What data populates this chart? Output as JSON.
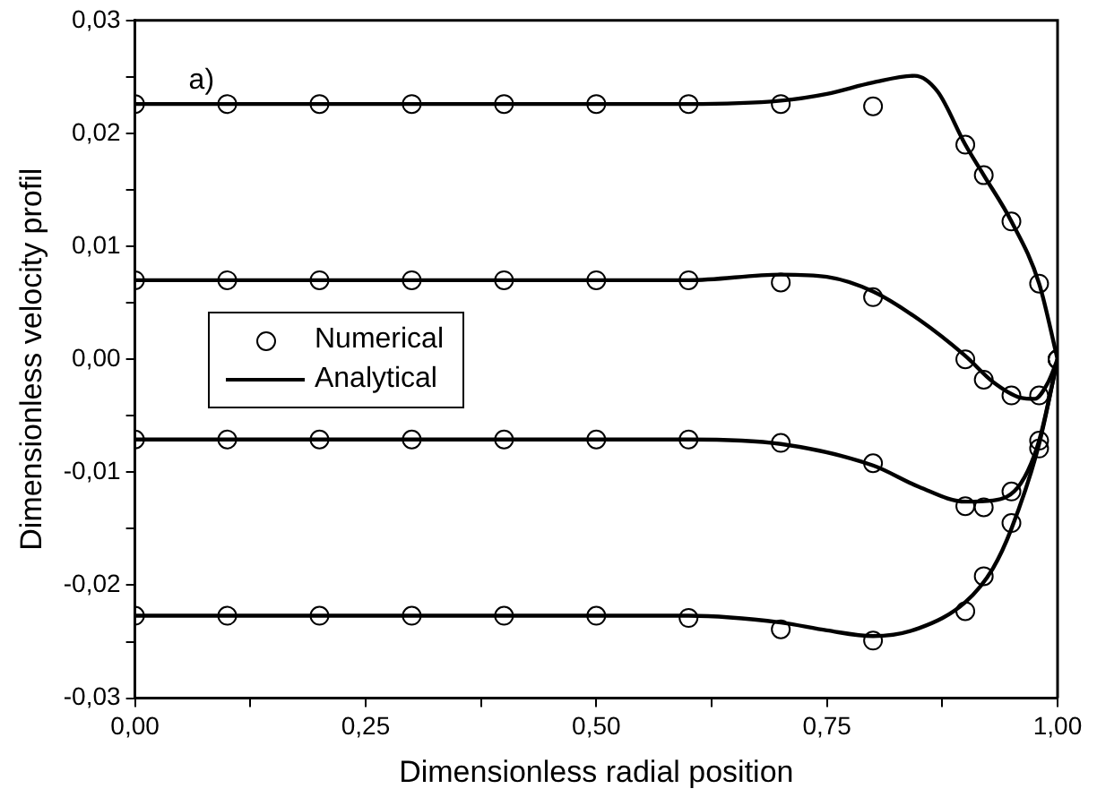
{
  "chart_data": {
    "type": "line",
    "xlabel": "Dimensionless radial position",
    "ylabel": "Dimensionless velocity profil",
    "annotations": [
      "a)"
    ],
    "xlim": [
      0,
      1
    ],
    "ylim": [
      -0.03,
      0.03
    ],
    "xticks": [
      {
        "value": 0,
        "label": "0,00"
      },
      {
        "value": 0.125,
        "label": null
      },
      {
        "value": 0.25,
        "label": "0,25"
      },
      {
        "value": 0.375,
        "label": null
      },
      {
        "value": 0.5,
        "label": "0,50"
      },
      {
        "value": 0.625,
        "label": null
      },
      {
        "value": 0.75,
        "label": "0,75"
      },
      {
        "value": 0.875,
        "label": null
      },
      {
        "value": 1,
        "label": "1,00"
      }
    ],
    "yticks": [
      {
        "value": -0.03,
        "label": "-0,03"
      },
      {
        "value": -0.025,
        "label": null
      },
      {
        "value": -0.02,
        "label": "-0,02"
      },
      {
        "value": -0.015,
        "label": null
      },
      {
        "value": -0.01,
        "label": "-0,01"
      },
      {
        "value": -0.005,
        "label": null
      },
      {
        "value": 0,
        "label": "0,00"
      },
      {
        "value": 0.005,
        "label": null
      },
      {
        "value": 0.01,
        "label": "0,01"
      },
      {
        "value": 0.015,
        "label": null
      },
      {
        "value": 0.02,
        "label": "0,02"
      },
      {
        "value": 0.025,
        "label": null
      },
      {
        "value": 0.03,
        "label": "0,03"
      }
    ],
    "grid": false,
    "legend": "left",
    "series": [
      {
        "name": "Numerical",
        "type": "scatter",
        "marker": "circle",
        "color": "#000000",
        "x": [
          0,
          0.1,
          0.2,
          0.3,
          0.4,
          0.5,
          0.6,
          0.7,
          0.8,
          0.9,
          0.92,
          0.95,
          0.98,
          1
        ],
        "values": [
          0.0226,
          0.0226,
          0.0226,
          0.0226,
          0.0226,
          0.0226,
          0.0226,
          0.0226,
          0.0224,
          0.019,
          0.0163,
          0.0122,
          0.0067,
          0
        ]
      },
      {
        "type": "scatter",
        "marker": "circle",
        "color": "#000000",
        "x": [
          0,
          0.1,
          0.2,
          0.3,
          0.4,
          0.5,
          0.6,
          0.7,
          0.8,
          0.9,
          0.92,
          0.95,
          0.98,
          1
        ],
        "values": [
          0.007,
          0.007,
          0.007,
          0.007,
          0.007,
          0.007,
          0.007,
          0.0068,
          0.0055,
          0,
          -0.0018,
          -0.0032,
          -0.0032,
          0
        ]
      },
      {
        "type": "scatter",
        "marker": "circle",
        "color": "#000000",
        "x": [
          0,
          0.1,
          0.2,
          0.3,
          0.4,
          0.5,
          0.6,
          0.7,
          0.8,
          0.9,
          0.92,
          0.95,
          0.98,
          1
        ],
        "values": [
          -0.0071,
          -0.0071,
          -0.0071,
          -0.0071,
          -0.0071,
          -0.0071,
          -0.0071,
          -0.0074,
          -0.0092,
          -0.013,
          -0.0131,
          -0.0117,
          -0.0072,
          0
        ]
      },
      {
        "type": "scatter",
        "marker": "circle",
        "color": "#000000",
        "x": [
          0,
          0.1,
          0.2,
          0.3,
          0.4,
          0.5,
          0.6,
          0.7,
          0.8,
          0.9,
          0.92,
          0.95,
          0.98,
          1
        ],
        "values": [
          -0.0227,
          -0.0227,
          -0.0227,
          -0.0227,
          -0.0227,
          -0.0227,
          -0.0229,
          -0.0239,
          -0.0249,
          -0.0223,
          -0.0192,
          -0.0145,
          -0.0079,
          0
        ]
      },
      {
        "name": "Analytical",
        "color": "#000000",
        "x": [
          0,
          0.2,
          0.4,
          0.6,
          0.7,
          0.75,
          0.8,
          0.845,
          0.87,
          0.9,
          0.92,
          0.95,
          0.98,
          1
        ],
        "values": [
          0.0226,
          0.0226,
          0.0226,
          0.0226,
          0.0229,
          0.0235,
          0.0245,
          0.0251,
          0.0237,
          0.019,
          0.0163,
          0.0122,
          0.0067,
          0
        ]
      },
      {
        "color": "#000000",
        "x": [
          0,
          0.2,
          0.4,
          0.6,
          0.7,
          0.75,
          0.8,
          0.85,
          0.9,
          0.93,
          0.96,
          0.975,
          0.99,
          1
        ],
        "values": [
          0.007,
          0.007,
          0.007,
          0.007,
          0.0075,
          0.0073,
          0.006,
          0.0035,
          0.0003,
          -0.002,
          -0.0034,
          -0.0035,
          -0.002,
          0
        ]
      },
      {
        "color": "#000000",
        "x": [
          0,
          0.2,
          0.4,
          0.6,
          0.7,
          0.8,
          0.85,
          0.9,
          0.93,
          0.96,
          0.98,
          1
        ],
        "values": [
          -0.0071,
          -0.0071,
          -0.0071,
          -0.0071,
          -0.0075,
          -0.0094,
          -0.0113,
          -0.0126,
          -0.0125,
          -0.011,
          -0.0072,
          0
        ]
      },
      {
        "color": "#000000",
        "x": [
          0,
          0.2,
          0.4,
          0.6,
          0.7,
          0.75,
          0.8,
          0.85,
          0.9,
          0.93,
          0.95,
          0.98,
          1
        ],
        "values": [
          -0.0227,
          -0.0227,
          -0.0227,
          -0.0227,
          -0.0233,
          -0.024,
          -0.0245,
          -0.0238,
          -0.0215,
          -0.0185,
          -0.015,
          -0.0075,
          0
        ]
      }
    ]
  }
}
